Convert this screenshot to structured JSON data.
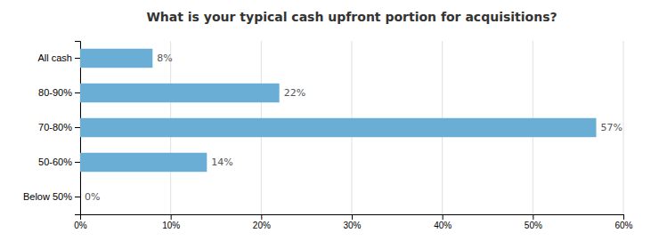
{
  "chart_data": {
    "type": "bar",
    "orientation": "horizontal",
    "title": "What is your typical cash upfront portion for acquisitions?",
    "categories": [
      "All cash",
      "80-90%",
      "70-80%",
      "50-60%",
      "Below 50%"
    ],
    "values": [
      8,
      22,
      57,
      14,
      0
    ],
    "value_labels": [
      "8%",
      "22%",
      "57%",
      "14%",
      "0%"
    ],
    "data_labels": true,
    "color": "#6aaed6",
    "xlim": [
      0,
      60
    ],
    "xticks": [
      {
        "value": 0,
        "label": "0%"
      },
      {
        "value": 10,
        "label": "10%"
      },
      {
        "value": 20,
        "label": "20%"
      },
      {
        "value": 30,
        "label": "30%"
      },
      {
        "value": 40,
        "label": "40%"
      },
      {
        "value": 50,
        "label": "50%"
      },
      {
        "value": 60,
        "label": "60%"
      }
    ],
    "grid": true
  }
}
